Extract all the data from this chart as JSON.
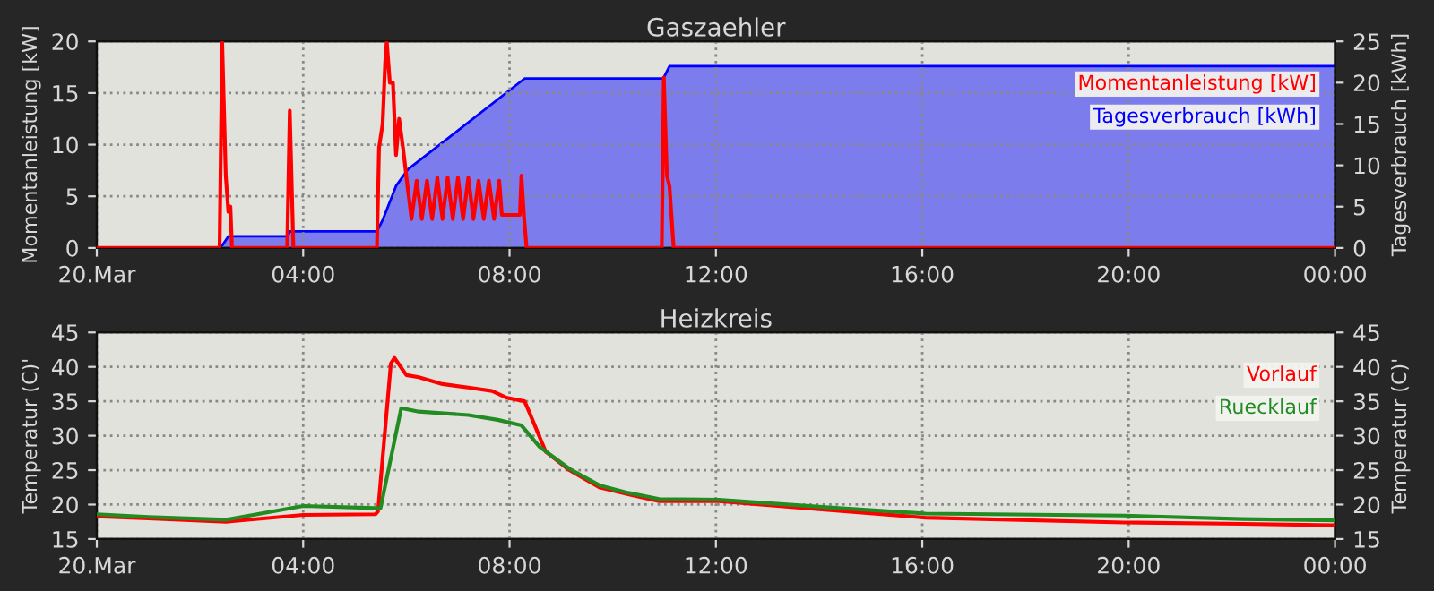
{
  "chart_data": [
    {
      "type": "line",
      "title": "Gaszaehler",
      "ylabel": "Momentanleistung [kW]",
      "y2label": "Tagesverbrauch [kWh]",
      "xlim": [
        0,
        24
      ],
      "xticks": [
        {
          "value": 0,
          "label": "20.Mar"
        },
        {
          "value": 4,
          "label": "04:00"
        },
        {
          "value": 8,
          "label": "08:00"
        },
        {
          "value": 12,
          "label": "12:00"
        },
        {
          "value": 16,
          "label": "16:00"
        },
        {
          "value": 20,
          "label": "20:00"
        },
        {
          "value": 24,
          "label": "00:00"
        }
      ],
      "ylim": [
        0,
        20
      ],
      "yticks": [
        0,
        5,
        10,
        15,
        20
      ],
      "y2lim": [
        0,
        25
      ],
      "y2ticks": [
        0,
        5,
        10,
        15,
        20,
        25
      ],
      "grid": true,
      "legend": "top right",
      "series": [
        {
          "name": "Momentanleistung [kW]",
          "color": "#ff0000",
          "type": "line",
          "x": [
            0,
            2.38,
            2.43,
            2.5,
            2.55,
            2.59,
            2.62,
            3.69,
            3.74,
            3.81,
            5.43,
            5.47,
            5.54,
            5.59,
            5.62,
            5.68,
            5.74,
            5.8,
            5.86,
            5.94,
            6.01,
            6.1,
            6.2,
            6.3,
            6.4,
            6.5,
            6.6,
            6.7,
            6.8,
            6.9,
            7.0,
            7.1,
            7.2,
            7.3,
            7.4,
            7.5,
            7.6,
            7.7,
            7.8,
            7.85,
            8.2,
            8.23,
            8.28,
            8.33,
            10.95,
            10.99,
            11.05,
            11.1,
            11.18,
            24
          ],
          "values": [
            0,
            0,
            20,
            7,
            3.5,
            4,
            0,
            0,
            13.3,
            0,
            0,
            9.7,
            12,
            18,
            20,
            16,
            16,
            9,
            12.5,
            9.5,
            6.5,
            2.8,
            6.5,
            2.8,
            6.5,
            2.8,
            6.8,
            2.8,
            6.8,
            2.8,
            6.8,
            2.8,
            6.8,
            2.8,
            6.5,
            2.8,
            6.5,
            2.8,
            6.5,
            3.2,
            3.2,
            7,
            3,
            0,
            0,
            16.5,
            7,
            6,
            0,
            0
          ]
        },
        {
          "name": "Tagesverbrauch [kWh]",
          "color": "#0000ff",
          "type": "area",
          "axis": "y2",
          "x": [
            0,
            2.4,
            2.55,
            3.7,
            3.74,
            5.43,
            5.55,
            5.8,
            6.03,
            8.29,
            10.98,
            11.1,
            24
          ],
          "values": [
            0,
            0,
            1.4,
            1.4,
            2.0,
            2.0,
            3.5,
            7.5,
            9.5,
            20.5,
            20.5,
            22.0,
            22.0
          ]
        }
      ]
    },
    {
      "type": "line",
      "title": "Heizkreis",
      "ylabel": "Temperatur (C)'",
      "y2label": "Temperatur (C)'",
      "xlim": [
        0,
        24
      ],
      "xticks": [
        {
          "value": 0,
          "label": "20.Mar"
        },
        {
          "value": 4,
          "label": "04:00"
        },
        {
          "value": 8,
          "label": "08:00"
        },
        {
          "value": 12,
          "label": "12:00"
        },
        {
          "value": 16,
          "label": "16:00"
        },
        {
          "value": 20,
          "label": "20:00"
        },
        {
          "value": 24,
          "label": "00:00"
        }
      ],
      "ylim": [
        15,
        45
      ],
      "yticks": [
        15,
        20,
        25,
        30,
        35,
        40,
        45
      ],
      "y2lim": [
        15,
        45
      ],
      "y2ticks": [
        15,
        20,
        25,
        30,
        35,
        40,
        45
      ],
      "grid": true,
      "legend": "top right",
      "series": [
        {
          "name": "Vorlauf",
          "color": "#ff0000",
          "x": [
            0,
            1,
            2.5,
            4,
            5.4,
            5.45,
            5.7,
            5.77,
            6.0,
            6.24,
            6.7,
            7.2,
            7.66,
            7.95,
            8.29,
            8.35,
            8.7,
            9.16,
            9.74,
            10.3,
            10.9,
            12.06,
            14.38,
            16.06,
            19.9,
            22.2,
            24
          ],
          "values": [
            18.3,
            18,
            17.5,
            18.5,
            18.6,
            19,
            40.5,
            41.3,
            38.8,
            38.5,
            37.5,
            37,
            36.5,
            35.5,
            35,
            34,
            27.7,
            25,
            22.5,
            21.5,
            20.5,
            20.5,
            19.1,
            18.1,
            17.4,
            17.2,
            17
          ]
        },
        {
          "name": "Ruecklauf",
          "color": "#228b22",
          "x": [
            0,
            1,
            2.5,
            4,
            5.4,
            5.5,
            5.9,
            6.24,
            7.2,
            7.77,
            8.23,
            8.58,
            9.16,
            9.74,
            10.3,
            10.9,
            12.06,
            14.38,
            16.06,
            19.9,
            22.2,
            24
          ],
          "values": [
            18.6,
            18.2,
            17.8,
            19.8,
            19.5,
            19.5,
            34,
            33.5,
            33,
            32.3,
            31.5,
            28.4,
            25.2,
            22.8,
            21.7,
            20.8,
            20.7,
            19.5,
            18.7,
            18.4,
            17.9,
            17.7
          ]
        }
      ]
    }
  ]
}
